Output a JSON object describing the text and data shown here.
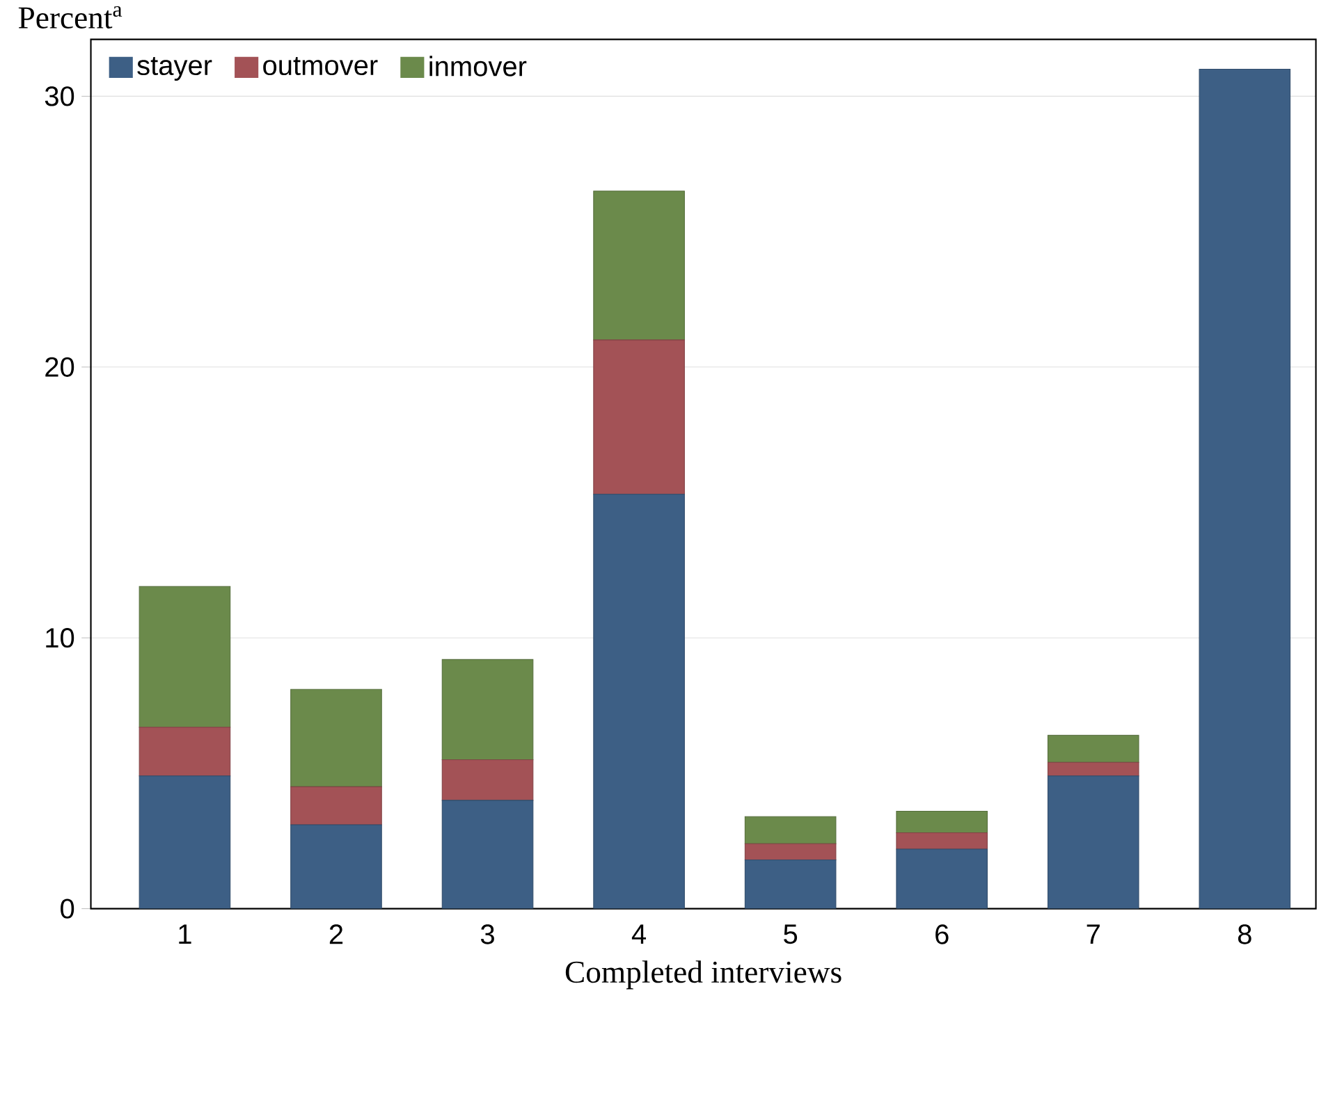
{
  "chart_data": {
    "type": "bar",
    "stacked": true,
    "xlabel": "Completed interviews",
    "ylabel": "Percent$^{a}$",
    "categories": [
      "1",
      "2",
      "3",
      "4",
      "5",
      "6",
      "7",
      "8"
    ],
    "series": [
      {
        "name": "stayer",
        "color": "#3d5f85",
        "values": [
          4.9,
          3.1,
          4.0,
          15.3,
          1.8,
          2.2,
          4.9,
          31.0
        ]
      },
      {
        "name": "outmover",
        "color": "#a35256",
        "values": [
          1.8,
          1.4,
          1.5,
          5.7,
          0.6,
          0.6,
          0.5,
          0
        ]
      },
      {
        "name": "inmover",
        "color": "#6b8a4b",
        "values": [
          5.2,
          3.6,
          3.7,
          5.5,
          1.0,
          0.8,
          1.0,
          0
        ]
      }
    ],
    "ylim": [
      0,
      32.1
    ],
    "yticks": [
      0,
      10,
      20,
      30
    ],
    "grid": "y",
    "legend": "top left"
  }
}
